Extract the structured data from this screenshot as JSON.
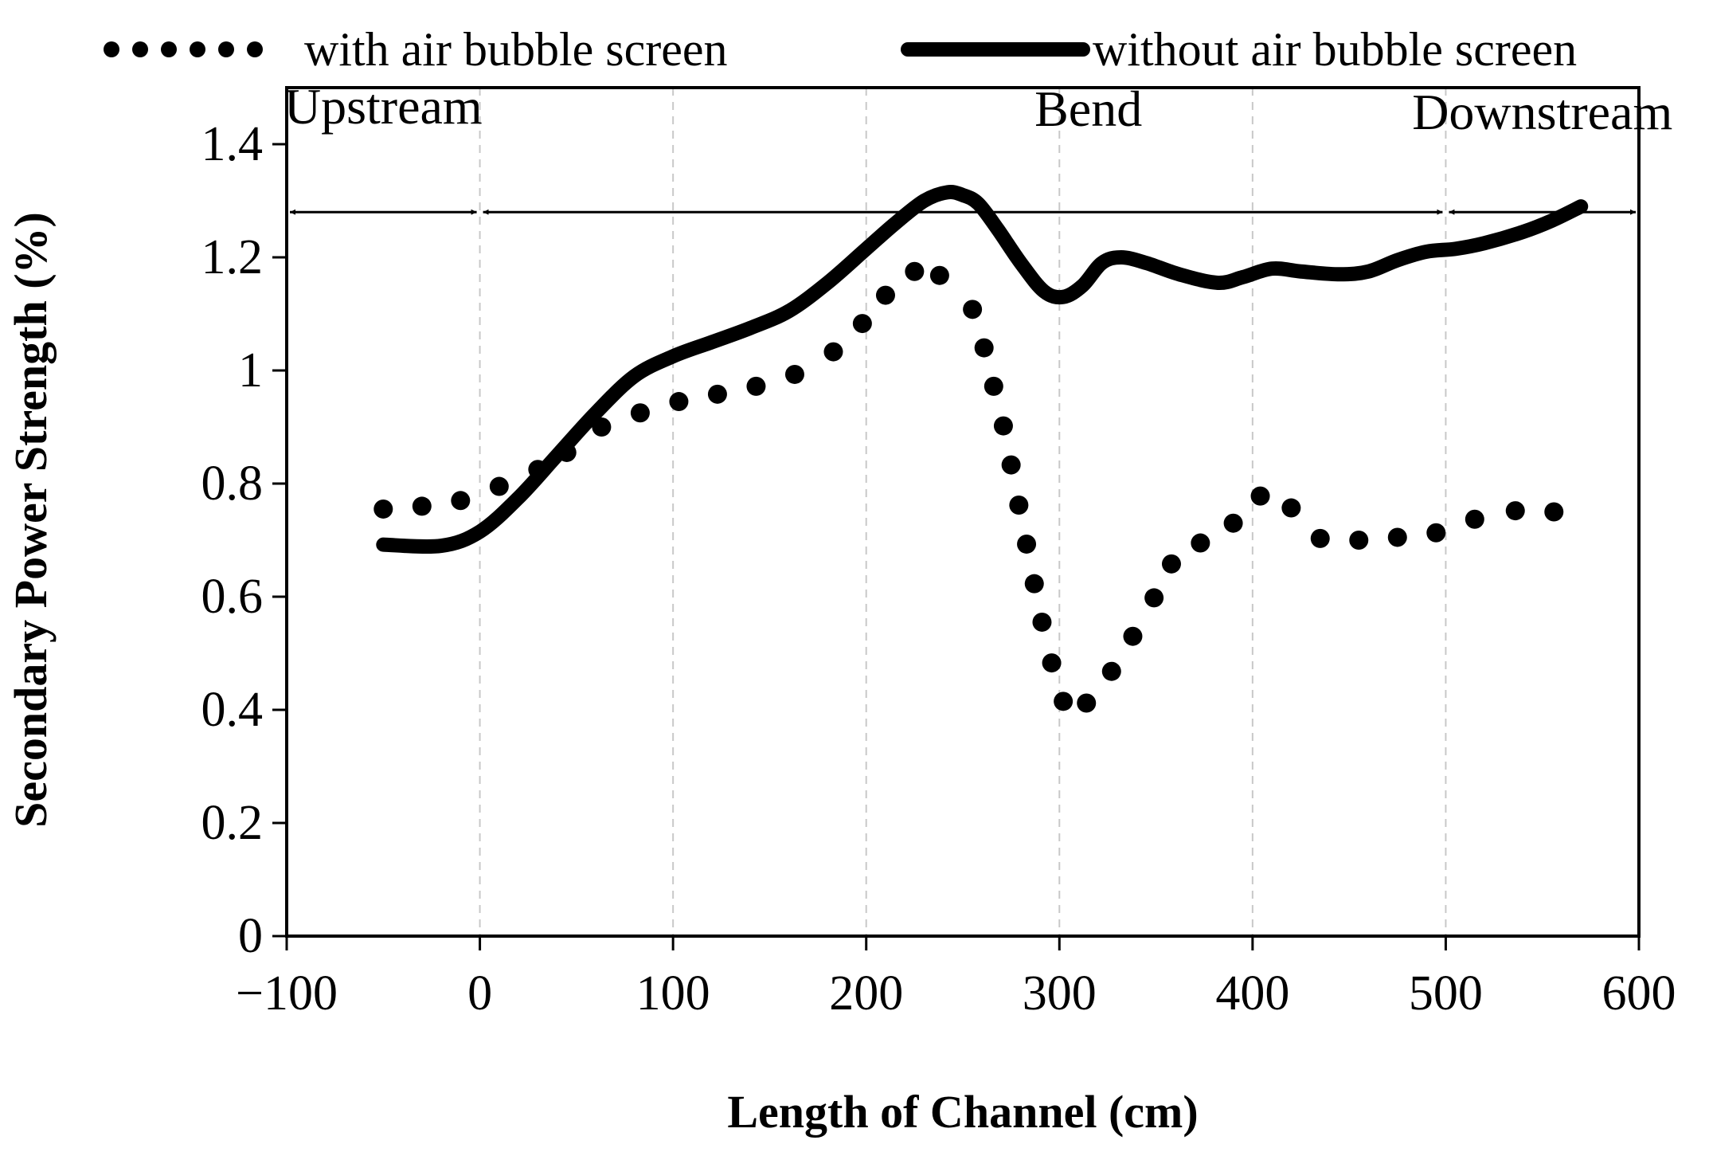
{
  "chart_data": {
    "type": "line",
    "xlabel": "Length of Channel (cm)",
    "ylabel": "Secondary Power Strength (%)",
    "xlim": [
      -100,
      600
    ],
    "ylim": [
      0,
      1.5
    ],
    "xticks": [
      -100,
      0,
      100,
      200,
      300,
      400,
      500,
      600
    ],
    "xtick_labels": [
      "−100",
      "0",
      "100",
      "200",
      "300",
      "400",
      "500",
      "600"
    ],
    "yticks": [
      0,
      0.2,
      0.4,
      0.6,
      0.8,
      1,
      1.2,
      1.4
    ],
    "ytick_labels": [
      "0",
      "0.2",
      "0.4",
      "0.6",
      "0.8",
      "1",
      "1.2",
      "1.4"
    ],
    "grid": "vertical dashed",
    "legend_position": "top",
    "regions": [
      {
        "label": "Upstream",
        "from": -100,
        "to": 0
      },
      {
        "label": "Bend",
        "from": 0,
        "to": 500
      },
      {
        "label": "Downstream",
        "from": 500,
        "to": 600
      }
    ],
    "region_arrow_y": 1.28,
    "series": [
      {
        "name": "with air bubble screen",
        "style": "dotted",
        "x": [
          -50,
          -30,
          -10,
          10,
          30,
          45,
          63,
          83,
          103,
          123,
          143,
          163,
          183,
          198,
          210,
          225,
          238,
          255,
          261,
          266,
          271,
          275,
          279,
          283,
          287,
          291,
          296,
          302,
          314,
          327,
          338,
          349,
          358,
          373,
          390,
          404,
          420,
          435,
          455,
          475,
          495,
          515,
          536,
          556
        ],
        "y": [
          0.755,
          0.76,
          0.77,
          0.795,
          0.825,
          0.855,
          0.9,
          0.925,
          0.945,
          0.958,
          0.972,
          0.993,
          1.033,
          1.083,
          1.133,
          1.175,
          1.168,
          1.108,
          1.04,
          0.972,
          0.902,
          0.833,
          0.762,
          0.693,
          0.623,
          0.555,
          0.483,
          0.415,
          0.412,
          0.468,
          0.53,
          0.598,
          0.658,
          0.695,
          0.73,
          0.778,
          0.757,
          0.703,
          0.7,
          0.705,
          0.713,
          0.737,
          0.752,
          0.75
        ]
      },
      {
        "name": "without air bubble screen",
        "style": "solid",
        "x": [
          -50,
          -20,
          0,
          20,
          40,
          60,
          80,
          100,
          120,
          140,
          160,
          180,
          200,
          215,
          230,
          242,
          250,
          258,
          268,
          280,
          292,
          302,
          312,
          322,
          332,
          345,
          362,
          382,
          395,
          410,
          425,
          445,
          460,
          475,
          490,
          505,
          520,
          540,
          555,
          570
        ],
        "y": [
          0.692,
          0.69,
          0.715,
          0.775,
          0.85,
          0.925,
          0.99,
          1.025,
          1.05,
          1.075,
          1.105,
          1.155,
          1.215,
          1.26,
          1.3,
          1.315,
          1.31,
          1.295,
          1.25,
          1.19,
          1.14,
          1.13,
          1.15,
          1.19,
          1.2,
          1.19,
          1.17,
          1.155,
          1.165,
          1.18,
          1.175,
          1.17,
          1.175,
          1.195,
          1.21,
          1.215,
          1.225,
          1.245,
          1.265,
          1.29
        ]
      }
    ]
  }
}
